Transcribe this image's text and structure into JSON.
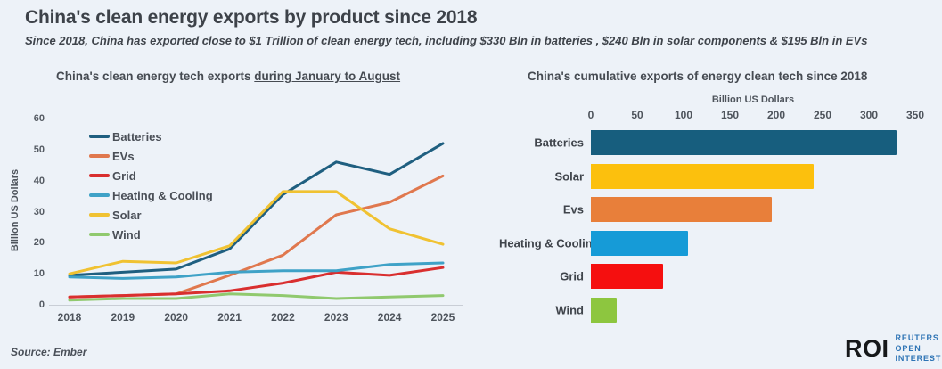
{
  "page": {
    "background": "#edf2f8",
    "title": "China's clean energy exports by product since 2018",
    "subtitle": "Since 2018, China has exported close to $1 Trillion of clean energy tech, including $330 Bln in batteries , $240 Bln in solar components & $195 Bln in EVs"
  },
  "chart_data": [
    {
      "type": "line",
      "title_prefix": "China's clean energy tech exports ",
      "title_underlined": "during January to August",
      "ylabel": "Billion US Dollars",
      "x": [
        2018,
        2019,
        2020,
        2021,
        2022,
        2023,
        2024,
        2025
      ],
      "ylim": [
        0,
        60
      ],
      "yticks": [
        0,
        10,
        20,
        30,
        40,
        50,
        60
      ],
      "grid": false,
      "legend_position": "top-left",
      "series": [
        {
          "name": "Batteries",
          "color": "#1f5f80",
          "values": [
            9.5,
            10.5,
            11.5,
            18,
            35.5,
            46,
            42,
            52
          ]
        },
        {
          "name": "EVs",
          "color": "#e0784e",
          "values": [
            2.5,
            3,
            3.5,
            9.5,
            16,
            29,
            33,
            41.5
          ]
        },
        {
          "name": "Grid",
          "color": "#d92f2f",
          "values": [
            2.5,
            3,
            3.5,
            4.5,
            7,
            10.5,
            9.5,
            12
          ]
        },
        {
          "name": "Heating & Cooling",
          "color": "#3fa2c7",
          "values": [
            9,
            8.5,
            9,
            10.5,
            11,
            11,
            13,
            13.5
          ]
        },
        {
          "name": "Solar",
          "color": "#f0c232",
          "values": [
            10,
            14,
            13.5,
            19,
            36.5,
            36.5,
            24.5,
            19.5
          ]
        },
        {
          "name": "Wind",
          "color": "#90c96e",
          "values": [
            1.5,
            2,
            2,
            3.5,
            3,
            2,
            2.5,
            3
          ]
        }
      ]
    },
    {
      "type": "bar",
      "orientation": "horizontal",
      "title": "China's cumulative exports of energy clean tech since 2018",
      "axis_label": "Billion US Dollars",
      "xlim": [
        0,
        350
      ],
      "xticks": [
        0,
        50,
        100,
        150,
        200,
        250,
        300,
        350
      ],
      "categories": [
        "Batteries",
        "Solar",
        "Evs",
        "Heating & Cooling",
        "Grid",
        "Wind"
      ],
      "values": [
        330,
        240,
        195,
        105,
        78,
        28
      ],
      "colors": [
        "#175e7e",
        "#fcc00d",
        "#e87f3a",
        "#169bd7",
        "#f50f0f",
        "#8dc63f"
      ]
    }
  ],
  "footer": {
    "source": "Source: Ember",
    "logo": {
      "roi": "ROI",
      "line1": "REUTERS OPEN",
      "line2": "INTEREST",
      "accent": "#2e74b5"
    }
  }
}
